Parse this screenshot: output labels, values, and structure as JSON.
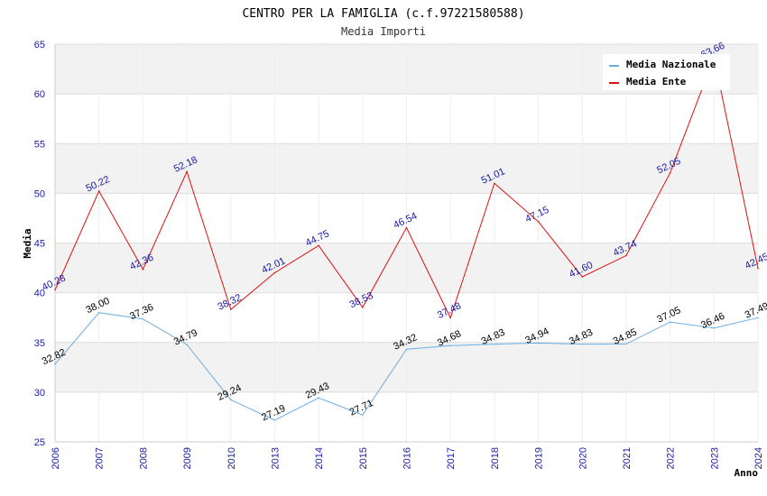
{
  "chart_data": {
    "type": "line",
    "title": "CENTRO PER LA FAMIGLIA (c.f.97221580588)",
    "subtitle": "Media Importi",
    "xlabel": "Anno",
    "ylabel": "Media",
    "ylim": [
      25,
      65
    ],
    "yticks": [
      "25",
      "30",
      "35",
      "40",
      "45",
      "50",
      "55",
      "60",
      "65"
    ],
    "grid": "horizontal alternating bands",
    "legend_position": "top-right",
    "categories": [
      "2006",
      "2007",
      "2008",
      "2009",
      "2010",
      "2013",
      "2014",
      "2015",
      "2016",
      "2017",
      "2018",
      "2019",
      "2020",
      "2021",
      "2022",
      "2023",
      "2024"
    ],
    "series": [
      {
        "name": "Media Nazionale",
        "color": "#6aaee6",
        "label_color": "#000000",
        "values": [
          32.82,
          38.0,
          37.36,
          34.79,
          29.24,
          27.19,
          29.43,
          27.71,
          34.32,
          34.68,
          34.83,
          34.94,
          34.83,
          34.85,
          37.05,
          36.46,
          37.49
        ],
        "labels": [
          "32.82",
          "38.00",
          "37.36",
          "34.79",
          "29.24",
          "27.19",
          "29.43",
          "27.71",
          "34.32",
          "34.68",
          "34.83",
          "34.94",
          "34.83",
          "34.85",
          "37.05",
          "36.46",
          "37.49"
        ]
      },
      {
        "name": "Media Ente",
        "color": "#e01010",
        "label_color": "#1a1aa6",
        "values": [
          40.28,
          50.22,
          42.36,
          52.18,
          38.32,
          42.01,
          44.75,
          38.53,
          46.54,
          37.48,
          51.01,
          47.15,
          41.6,
          43.74,
          52.05,
          63.66,
          42.45
        ],
        "labels": [
          "40.28",
          "50.22",
          "42.36",
          "52.18",
          "38.32",
          "42.01",
          "44.75",
          "38.53",
          "46.54",
          "37.48",
          "51.01",
          "47.15",
          "41.60",
          "43.74",
          "52.05",
          "63.66",
          "42.45"
        ]
      }
    ]
  }
}
